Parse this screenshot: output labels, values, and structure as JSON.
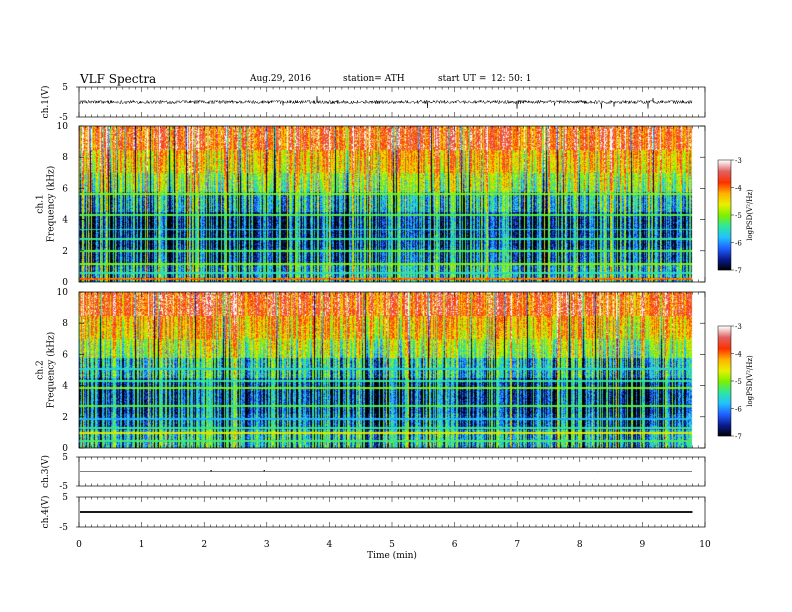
{
  "header": {
    "title": "VLF  Spectra",
    "date": "Aug.29, 2016",
    "station": "station= ATH",
    "start_label": "start  UT  =",
    "start_time": "12: 50: 1"
  },
  "chart_data": [
    {
      "type": "line",
      "name": "ch1-waveform",
      "ylabel": "ch.1(V)",
      "ylim": [
        -5,
        5
      ],
      "yticks": [
        "5",
        "-5"
      ],
      "xlim": [
        0,
        10
      ],
      "signal_extent_min": 9.8,
      "description_values": {
        "baseline": 0,
        "noise_amplitude_approx": 1.2
      }
    },
    {
      "type": "heatmap",
      "name": "ch1-spectrogram",
      "ylabel": "ch.1\nFrequency  (kHz)",
      "ylabel_lines": [
        "ch.1",
        "Frequency  (kHz)"
      ],
      "ylim": [
        0,
        10
      ],
      "yticks": [
        "0",
        "2",
        "4",
        "6",
        "8",
        "10"
      ],
      "xlim": [
        0,
        10
      ],
      "signal_extent_min": 9.8,
      "colorbar": {
        "label": "logPSD(V²/Hz)",
        "range": [
          -7,
          -3
        ],
        "ticks": [
          "-3",
          "-4",
          "-5",
          "-6",
          "-7"
        ],
        "colors": [
          "#000000",
          "#0a1a8c",
          "#1f5fff",
          "#22c0ff",
          "#2ee6a0",
          "#7cf000",
          "#e8f000",
          "#ffb000",
          "#ff3000",
          "#e06060",
          "#ffffff"
        ]
      },
      "bands": [
        {
          "f": 0.25,
          "level": -4.0
        },
        {
          "f": 0.6,
          "level": -5.5
        },
        {
          "f": 1.2,
          "level": -5.0
        },
        {
          "f": 2.0,
          "level": -5.2
        },
        {
          "f": 2.8,
          "level": -5.4
        },
        {
          "f": 3.4,
          "level": -5.6
        },
        {
          "f": 4.3,
          "level": -5.2
        },
        {
          "f": 5.7,
          "level": -5.0
        }
      ]
    },
    {
      "type": "heatmap",
      "name": "ch2-spectrogram",
      "ylabel": "ch.2\nFrequency  (kHz)",
      "ylabel_lines": [
        "ch.2",
        "Frequency  (kHz)"
      ],
      "ylim": [
        0,
        10
      ],
      "yticks": [
        "0",
        "2",
        "4",
        "6",
        "8",
        "10"
      ],
      "xlim": [
        0,
        10
      ],
      "signal_extent_min": 9.8,
      "colorbar": {
        "label": "logPSD(V²/Hz)",
        "range": [
          -7,
          -3
        ],
        "ticks": [
          "-3",
          "-4",
          "-5",
          "-6",
          "-7"
        ],
        "colors": [
          "#000000",
          "#0a1a8c",
          "#1f5fff",
          "#22c0ff",
          "#2ee6a0",
          "#7cf000",
          "#e8f000",
          "#ffb000",
          "#ff3000",
          "#e06060",
          "#ffffff"
        ]
      },
      "bands": [
        {
          "f": 0.5,
          "level": -5.3
        },
        {
          "f": 1.0,
          "level": -4.6
        },
        {
          "f": 1.3,
          "level": -5.4
        },
        {
          "f": 1.9,
          "level": -5.8
        },
        {
          "f": 2.7,
          "level": -5.2
        },
        {
          "f": 3.9,
          "level": -5.0
        },
        {
          "f": 4.3,
          "level": -5.4
        },
        {
          "f": 5.1,
          "level": -5.6
        }
      ]
    },
    {
      "type": "line",
      "name": "ch3-waveform",
      "ylabel": "ch.3(V)",
      "ylim": [
        -5,
        5
      ],
      "yticks": [
        "5",
        "-5"
      ],
      "xlim": [
        0,
        10
      ],
      "signal_extent_min": 9.8,
      "description_values": {
        "baseline": 0,
        "noise_amplitude_approx": 0.1
      }
    },
    {
      "type": "line",
      "name": "ch4-waveform",
      "ylabel": "ch.4(V)",
      "ylim": [
        -5,
        5
      ],
      "yticks": [
        "5",
        "-5"
      ],
      "xlim": [
        0,
        10
      ],
      "signal_extent_min": 9.8,
      "description_values": {
        "baseline": 0,
        "trace_thickness_approx_v": 0.6
      }
    }
  ],
  "xaxis": {
    "label": "Time  (min)",
    "ticks": [
      "0",
      "1",
      "2",
      "3",
      "4",
      "5",
      "6",
      "7",
      "8",
      "9",
      "10"
    ],
    "range": [
      0,
      10
    ]
  }
}
